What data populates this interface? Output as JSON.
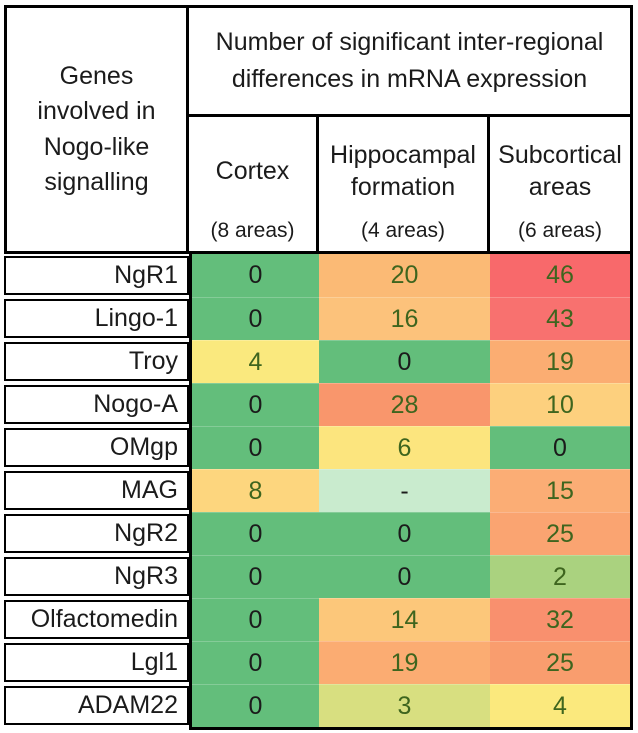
{
  "table": {
    "row_header_title": "Genes involved in Nogo-like signalling",
    "main_header": "Number of significant inter-regional differences in mRNA expression",
    "columns": [
      {
        "name": "Cortex",
        "areas": "(8 areas)"
      },
      {
        "name": "Hippocampal formation",
        "areas": "(4 areas)"
      },
      {
        "name": "Subcortical areas",
        "areas": "(6 areas)"
      }
    ],
    "rows": [
      {
        "gene": "NgR1",
        "values": [
          "0",
          "20",
          "46"
        ],
        "colors": [
          "#63BE7B",
          "#FBBA75",
          "#F8696B"
        ],
        "value_colors": [
          "#1B1B1B",
          "#3E651E",
          "#3E651E"
        ]
      },
      {
        "gene": "Lingo-1",
        "values": [
          "0",
          "16",
          "43"
        ],
        "colors": [
          "#63BE7B",
          "#FCC27B",
          "#F8716F"
        ],
        "value_colors": [
          "#1B1B1B",
          "#3E651E",
          "#3E651E"
        ]
      },
      {
        "gene": "Troy",
        "values": [
          "4",
          "0",
          "19"
        ],
        "colors": [
          "#FAE97E",
          "#63BE7B",
          "#FBAD72"
        ],
        "value_colors": [
          "#3E651E",
          "#1B1B1B",
          "#3E651E"
        ]
      },
      {
        "gene": "Nogo-A",
        "values": [
          "0",
          "28",
          "10"
        ],
        "colors": [
          "#63BE7B",
          "#F9966C",
          "#FDD07E"
        ],
        "value_colors": [
          "#1B1B1B",
          "#3E651E",
          "#3E651E"
        ]
      },
      {
        "gene": "OMgp",
        "values": [
          "0",
          "6",
          "0"
        ],
        "colors": [
          "#63BE7B",
          "#FCE57E",
          "#63BE7B"
        ],
        "value_colors": [
          "#1B1B1B",
          "#3E651E",
          "#1B1B1B"
        ]
      },
      {
        "gene": "MAG",
        "values": [
          "8",
          "-",
          "15"
        ],
        "colors": [
          "#FDD67E",
          "#C9EBCE",
          "#FBAD75"
        ],
        "value_colors": [
          "#3E651E",
          "#1B1B1B",
          "#3E651E"
        ]
      },
      {
        "gene": "NgR2",
        "values": [
          "0",
          "0",
          "25"
        ],
        "colors": [
          "#63BE7B",
          "#63BE7B",
          "#FAA471"
        ],
        "value_colors": [
          "#1B1B1B",
          "#1B1B1B",
          "#3E651E"
        ]
      },
      {
        "gene": "NgR3",
        "values": [
          "0",
          "0",
          "2"
        ],
        "colors": [
          "#63BE7B",
          "#63BE7B",
          "#AAD27F"
        ],
        "value_colors": [
          "#1B1B1B",
          "#1B1B1B",
          "#3E651E"
        ]
      },
      {
        "gene": "Olfactomedin",
        "values": [
          "0",
          "14",
          "32"
        ],
        "colors": [
          "#63BE7B",
          "#FCC77A",
          "#F9906E"
        ],
        "value_colors": [
          "#1B1B1B",
          "#3E651E",
          "#3E651E"
        ]
      },
      {
        "gene": "Lgl1",
        "values": [
          "0",
          "19",
          "25"
        ],
        "colors": [
          "#63BE7B",
          "#FBAC72",
          "#F99D6E"
        ],
        "value_colors": [
          "#1B1B1B",
          "#3E651E",
          "#3E651E"
        ]
      },
      {
        "gene": "ADAM22",
        "values": [
          "0",
          "3",
          "4"
        ],
        "colors": [
          "#63BE7B",
          "#D8DF80",
          "#FBE97D"
        ],
        "value_colors": [
          "#1B1B1B",
          "#3E651E",
          "#3E651E"
        ]
      }
    ],
    "palette": {
      "border_black": "#000000",
      "text_black": "#1B1B1B",
      "text_dark_green": "#3E651E",
      "scale_low_green": "#63BE7B",
      "scale_mid_yellow": "#FFEB84",
      "scale_high_red": "#F8696B",
      "missing_pale_green": "#C9EBCE"
    }
  },
  "chart_data": {
    "type": "heatmap",
    "title": "Number of significant inter-regional differences in mRNA expression",
    "row_label_header": "Genes involved in Nogo-like signalling",
    "columns": [
      "Cortex (8 areas)",
      "Hippocampal formation (4 areas)",
      "Subcortical areas (6 areas)"
    ],
    "rows": [
      "NgR1",
      "Lingo-1",
      "Troy",
      "Nogo-A",
      "OMgp",
      "MAG",
      "NgR2",
      "NgR3",
      "Olfactomedin",
      "Lgl1",
      "ADAM22"
    ],
    "values": [
      [
        0,
        20,
        46
      ],
      [
        0,
        16,
        43
      ],
      [
        4,
        0,
        19
      ],
      [
        0,
        28,
        10
      ],
      [
        0,
        6,
        0
      ],
      [
        8,
        "-",
        15
      ],
      [
        0,
        0,
        25
      ],
      [
        0,
        0,
        2
      ],
      [
        0,
        14,
        32
      ],
      [
        0,
        19,
        25
      ],
      [
        0,
        3,
        4
      ]
    ],
    "value_range": [
      0,
      46
    ],
    "color_scale": {
      "low": "#63BE7B",
      "mid": "#FFEB84",
      "high": "#F8696B"
    },
    "missing_marker": "-",
    "legend_position": "none",
    "grid": false
  }
}
